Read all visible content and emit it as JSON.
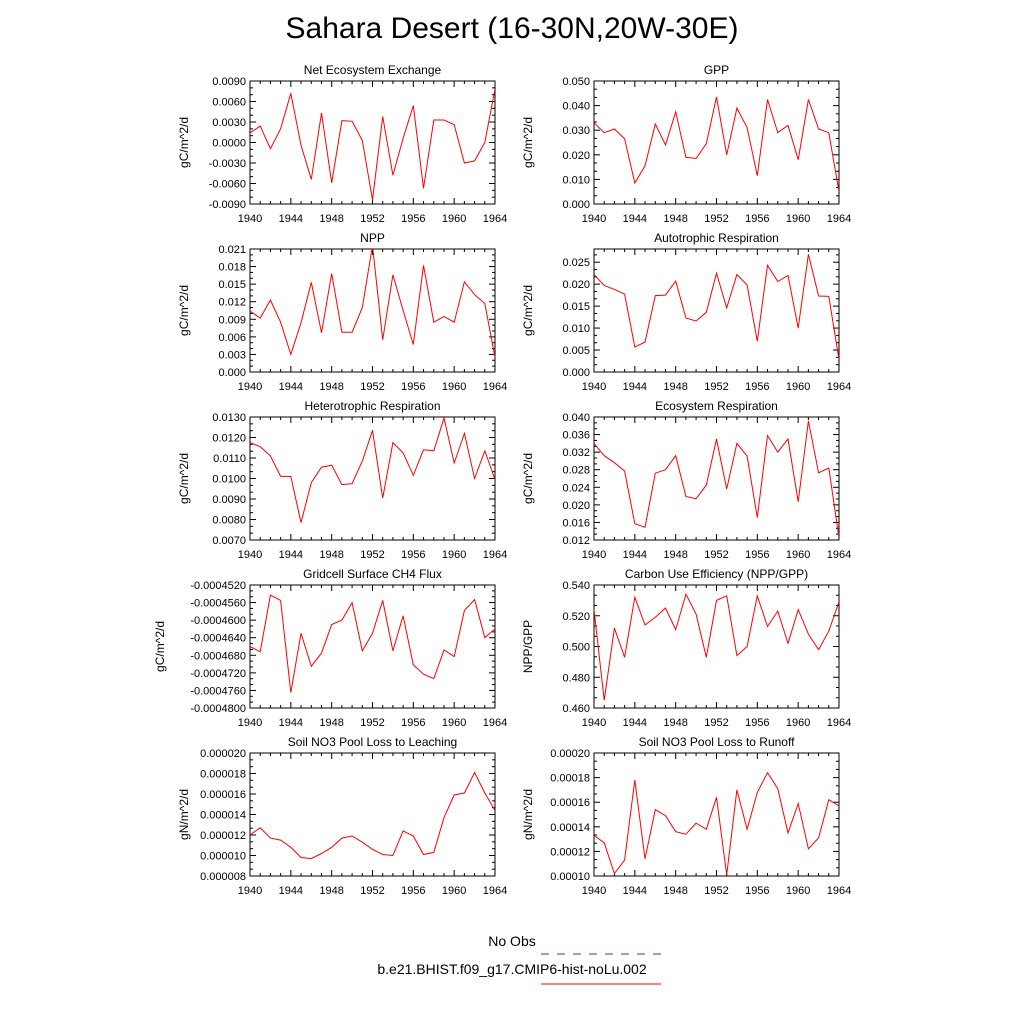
{
  "title": "Sahara Desert (16-30N,20W-30E)",
  "colors": {
    "model_line": "#ff0000",
    "obs_line": "#0000cd",
    "axis": "#000000"
  },
  "legend": {
    "obs_label": "No Obs",
    "model_label": "b.e21.BHIST.f09_g17.CMIP6-hist-noLu.002"
  },
  "chart_data": [
    {
      "type": "line",
      "title": "Net Ecosystem Exchange",
      "ylabel": "gC/m^2/d",
      "xlim": [
        1940,
        1964
      ],
      "ylim": [
        -0.009,
        0.009
      ],
      "xticks": [
        "1940",
        "1944",
        "1948",
        "1952",
        "1956",
        "1960",
        "1964"
      ],
      "yticks": [
        "-0.0090",
        "-0.0060",
        "-0.0030",
        "0.0000",
        "0.0030",
        "0.0060",
        "0.0090"
      ],
      "x": [
        1940,
        1941,
        1942,
        1943,
        1944,
        1945,
        1946,
        1947,
        1948,
        1949,
        1950,
        1951,
        1952,
        1953,
        1954,
        1955,
        1956,
        1957,
        1958,
        1959,
        1960,
        1961,
        1962,
        1963,
        1964
      ],
      "values": [
        0.0014,
        0.0024,
        -0.0009,
        0.002,
        0.0072,
        -0.0004,
        -0.0054,
        0.0043,
        -0.0059,
        0.0032,
        0.0031,
        0.0003,
        -0.0084,
        0.0038,
        -0.0048,
        0.0006,
        0.0054,
        -0.0067,
        0.0033,
        0.0033,
        0.0026,
        -0.003,
        -0.0027,
        0.0,
        0.0078
      ]
    },
    {
      "type": "line",
      "title": "GPP",
      "ylabel": "gC/m^2/d",
      "xlim": [
        1940,
        1964
      ],
      "ylim": [
        0.0,
        0.05
      ],
      "xticks": [
        "1940",
        "1944",
        "1948",
        "1952",
        "1956",
        "1960",
        "1964"
      ],
      "yticks": [
        "0.000",
        "0.010",
        "0.020",
        "0.030",
        "0.040",
        "0.050"
      ],
      "x": [
        1940,
        1941,
        1942,
        1943,
        1944,
        1945,
        1946,
        1947,
        1948,
        1949,
        1950,
        1951,
        1952,
        1953,
        1954,
        1955,
        1956,
        1957,
        1958,
        1959,
        1960,
        1961,
        1962,
        1963,
        1964
      ],
      "values": [
        0.033,
        0.029,
        0.0305,
        0.0265,
        0.0085,
        0.0155,
        0.0325,
        0.024,
        0.0375,
        0.019,
        0.0185,
        0.0245,
        0.0435,
        0.02,
        0.039,
        0.031,
        0.0115,
        0.0425,
        0.029,
        0.032,
        0.018,
        0.0425,
        0.0305,
        0.029,
        0.005
      ]
    },
    {
      "type": "line",
      "title": "NPP",
      "ylabel": "gC/m^2/d",
      "xlim": [
        1940,
        1964
      ],
      "ylim": [
        0.0,
        0.021
      ],
      "xticks": [
        "1940",
        "1944",
        "1948",
        "1952",
        "1956",
        "1960",
        "1964"
      ],
      "yticks": [
        "0.000",
        "0.003",
        "0.006",
        "0.009",
        "0.012",
        "0.015",
        "0.018",
        "0.021"
      ],
      "x": [
        1940,
        1941,
        1942,
        1943,
        1944,
        1945,
        1946,
        1947,
        1948,
        1949,
        1950,
        1951,
        1952,
        1953,
        1954,
        1955,
        1956,
        1957,
        1958,
        1959,
        1960,
        1961,
        1962,
        1963,
        1964
      ],
      "values": [
        0.0104,
        0.0092,
        0.0123,
        0.0085,
        0.003,
        0.0084,
        0.0153,
        0.0067,
        0.0168,
        0.0068,
        0.0068,
        0.011,
        0.0216,
        0.0055,
        0.0166,
        0.0105,
        0.0047,
        0.0182,
        0.0085,
        0.0095,
        0.0085,
        0.0154,
        0.0132,
        0.0117,
        0.0025
      ]
    },
    {
      "type": "line",
      "title": "Autotrophic Respiration",
      "ylabel": "gC/m^2/d",
      "xlim": [
        1940,
        1964
      ],
      "ylim": [
        0.0,
        0.028
      ],
      "xticks": [
        "1940",
        "1944",
        "1948",
        "1952",
        "1956",
        "1960",
        "1964"
      ],
      "yticks": [
        "0.000",
        "0.005",
        "0.010",
        "0.015",
        "0.020",
        "0.025"
      ],
      "x": [
        1940,
        1941,
        1942,
        1943,
        1944,
        1945,
        1946,
        1947,
        1948,
        1949,
        1950,
        1951,
        1952,
        1953,
        1954,
        1955,
        1956,
        1957,
        1958,
        1959,
        1960,
        1961,
        1962,
        1963,
        1964
      ],
      "values": [
        0.0222,
        0.0197,
        0.0188,
        0.0177,
        0.0057,
        0.0068,
        0.0174,
        0.0175,
        0.0207,
        0.0123,
        0.0116,
        0.0136,
        0.0225,
        0.0146,
        0.0222,
        0.0198,
        0.007,
        0.0243,
        0.0206,
        0.022,
        0.01,
        0.0268,
        0.0173,
        0.0172,
        0.0028
      ]
    },
    {
      "type": "line",
      "title": "Heterotrophic Respiration",
      "ylabel": "gC/m^2/d",
      "xlim": [
        1940,
        1964
      ],
      "ylim": [
        0.007,
        0.013
      ],
      "xticks": [
        "1940",
        "1944",
        "1948",
        "1952",
        "1956",
        "1960",
        "1964"
      ],
      "yticks": [
        "0.0070",
        "0.0080",
        "0.0090",
        "0.0100",
        "0.0110",
        "0.0120",
        "0.0130"
      ],
      "x": [
        1940,
        1941,
        1942,
        1943,
        1944,
        1945,
        1946,
        1947,
        1948,
        1949,
        1950,
        1951,
        1952,
        1953,
        1954,
        1955,
        1956,
        1957,
        1958,
        1959,
        1960,
        1961,
        1962,
        1963,
        1964
      ],
      "values": [
        0.01175,
        0.01155,
        0.0111,
        0.0101,
        0.0101,
        0.00785,
        0.0098,
        0.01055,
        0.01065,
        0.0097,
        0.00975,
        0.01085,
        0.01235,
        0.00905,
        0.01175,
        0.01125,
        0.01015,
        0.0114,
        0.01135,
        0.01295,
        0.01075,
        0.0122,
        0.01,
        0.01135,
        0.00995
      ]
    },
    {
      "type": "line",
      "title": "Ecosystem Respiration",
      "ylabel": "gC/m^2/d",
      "xlim": [
        1940,
        1964
      ],
      "ylim": [
        0.012,
        0.04
      ],
      "xticks": [
        "1940",
        "1944",
        "1948",
        "1952",
        "1956",
        "1960",
        "1964"
      ],
      "yticks": [
        "0.012",
        "0.016",
        "0.020",
        "0.024",
        "0.028",
        "0.032",
        "0.036",
        "0.040"
      ],
      "x": [
        1940,
        1941,
        1942,
        1943,
        1944,
        1945,
        1946,
        1947,
        1948,
        1949,
        1950,
        1951,
        1952,
        1953,
        1954,
        1955,
        1956,
        1957,
        1958,
        1959,
        1960,
        1961,
        1962,
        1963,
        1964
      ],
      "values": [
        0.034,
        0.0312,
        0.0296,
        0.0277,
        0.0157,
        0.0149,
        0.0272,
        0.028,
        0.0312,
        0.0219,
        0.0214,
        0.0245,
        0.035,
        0.0236,
        0.034,
        0.0311,
        0.0171,
        0.0358,
        0.032,
        0.035,
        0.0207,
        0.0391,
        0.0273,
        0.0284,
        0.0125
      ]
    },
    {
      "type": "line",
      "title": "Gridcell Surface CH4 Flux",
      "ylabel": "gC/m^2/d",
      "xlim": [
        1940,
        1964
      ],
      "ylim": [
        -0.00048,
        -0.000452
      ],
      "xticks": [
        "1940",
        "1944",
        "1948",
        "1952",
        "1956",
        "1960",
        "1964"
      ],
      "yticks": [
        "-0.0004800",
        "-0.0004760",
        "-0.0004720",
        "-0.0004680",
        "-0.0004640",
        "-0.0004600",
        "-0.0004560",
        "-0.0004520"
      ],
      "x": [
        1940,
        1941,
        1942,
        1943,
        1944,
        1945,
        1946,
        1947,
        1948,
        1949,
        1950,
        1951,
        1952,
        1953,
        1954,
        1955,
        1956,
        1957,
        1958,
        1959,
        1960,
        1961,
        1962,
        1963,
        1964
      ],
      "values": [
        -0.000466,
        -0.0004672,
        -0.0004543,
        -0.0004555,
        -0.0004765,
        -0.000463,
        -0.0004705,
        -0.0004675,
        -0.000461,
        -0.00046,
        -0.000456,
        -0.000467,
        -0.000463,
        -0.0004555,
        -0.000467,
        -0.000459,
        -0.0004702,
        -0.0004723,
        -0.0004733,
        -0.0004668,
        -0.0004683,
        -0.0004578,
        -0.0004553,
        -0.000464,
        -0.000462
      ]
    },
    {
      "type": "line",
      "title": "Carbon Use Efficiency (NPP/GPP)",
      "ylabel": "NPP/GPP",
      "xlim": [
        1940,
        1964
      ],
      "ylim": [
        0.46,
        0.54
      ],
      "xticks": [
        "1940",
        "1944",
        "1948",
        "1952",
        "1956",
        "1960",
        "1964"
      ],
      "yticks": [
        "0.460",
        "0.480",
        "0.500",
        "0.520",
        "0.540"
      ],
      "x": [
        1940,
        1941,
        1942,
        1943,
        1944,
        1945,
        1946,
        1947,
        1948,
        1949,
        1950,
        1951,
        1952,
        1953,
        1954,
        1955,
        1956,
        1957,
        1958,
        1959,
        1960,
        1961,
        1962,
        1963,
        1964
      ],
      "values": [
        0.524,
        0.465,
        0.512,
        0.493,
        0.532,
        0.514,
        0.519,
        0.525,
        0.511,
        0.534,
        0.521,
        0.493,
        0.53,
        0.533,
        0.494,
        0.5,
        0.533,
        0.513,
        0.523,
        0.502,
        0.524,
        0.508,
        0.498,
        0.51,
        0.529
      ]
    },
    {
      "type": "line",
      "title": "Soil NO3 Pool Loss to Leaching",
      "ylabel": "gN/m^2/d",
      "xlim": [
        1940,
        1964
      ],
      "ylim": [
        8e-06,
        2e-05
      ],
      "xticks": [
        "1940",
        "1944",
        "1948",
        "1952",
        "1956",
        "1960",
        "1964"
      ],
      "yticks": [
        "0.000008",
        "0.000010",
        "0.000012",
        "0.000014",
        "0.000016",
        "0.000018",
        "0.000020"
      ],
      "x": [
        1940,
        1941,
        1942,
        1943,
        1944,
        1945,
        1946,
        1947,
        1948,
        1949,
        1950,
        1951,
        1952,
        1953,
        1954,
        1955,
        1956,
        1957,
        1958,
        1959,
        1960,
        1961,
        1962,
        1963,
        1964
      ],
      "values": [
        1.2e-05,
        1.27e-05,
        1.17e-05,
        1.15e-05,
        1.08e-05,
        9.8e-06,
        9.7e-06,
        1.02e-05,
        1.08e-05,
        1.17e-05,
        1.19e-05,
        1.13e-05,
        1.06e-05,
        1.01e-05,
        1e-05,
        1.24e-05,
        1.19e-05,
        1.01e-05,
        1.03e-05,
        1.37e-05,
        1.59e-05,
        1.61e-05,
        1.81e-05,
        1.61e-05,
        1.44e-05
      ]
    },
    {
      "type": "line",
      "title": "Soil NO3 Pool Loss to Runoff",
      "ylabel": "gN/m^2/d",
      "xlim": [
        1940,
        1964
      ],
      "ylim": [
        0.0001,
        0.0002
      ],
      "xticks": [
        "1940",
        "1944",
        "1948",
        "1952",
        "1956",
        "1960",
        "1964"
      ],
      "yticks": [
        "0.00010",
        "0.00012",
        "0.00014",
        "0.00016",
        "0.00018",
        "0.00020"
      ],
      "x": [
        1940,
        1941,
        1942,
        1943,
        1944,
        1945,
        1946,
        1947,
        1948,
        1949,
        1950,
        1951,
        1952,
        1953,
        1954,
        1955,
        1956,
        1957,
        1958,
        1959,
        1960,
        1961,
        1962,
        1963,
        1964
      ],
      "values": [
        0.000133,
        0.000127,
        0.000102,
        0.000113,
        0.000178,
        0.000114,
        0.000154,
        0.000149,
        0.000136,
        0.000134,
        0.000143,
        0.000138,
        0.000164,
        0.000101,
        0.00017,
        0.000138,
        0.000168,
        0.000184,
        0.000171,
        0.000135,
        0.000159,
        0.000122,
        0.000131,
        0.000162,
        0.000157
      ]
    }
  ]
}
